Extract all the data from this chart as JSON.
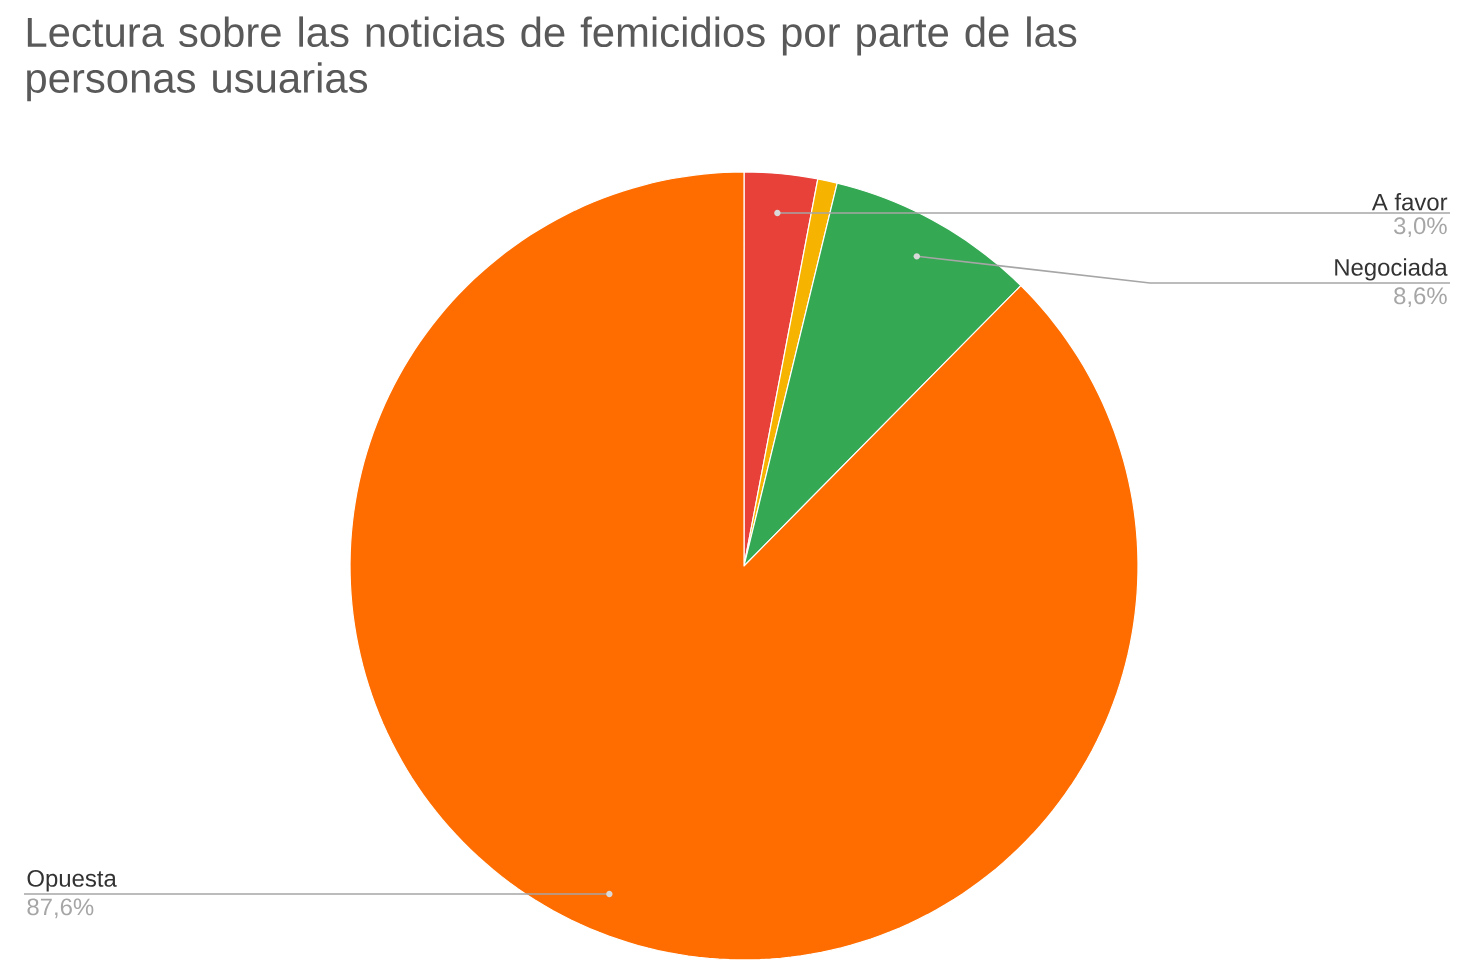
{
  "chart_data": {
    "type": "pie",
    "title": "Lectura sobre las noticias de femicidios por parte de las personas usuarias",
    "categories": [
      "A favor",
      null,
      "Negociada",
      "Opuesta"
    ],
    "values": [
      3.0,
      0.8,
      8.6,
      87.6
    ],
    "value_labels": [
      "3,0%",
      null,
      "8,6%",
      "87,6%"
    ],
    "colors": [
      "#e8413a",
      "#f6b400",
      "#34a853",
      "#ff6d00"
    ]
  }
}
